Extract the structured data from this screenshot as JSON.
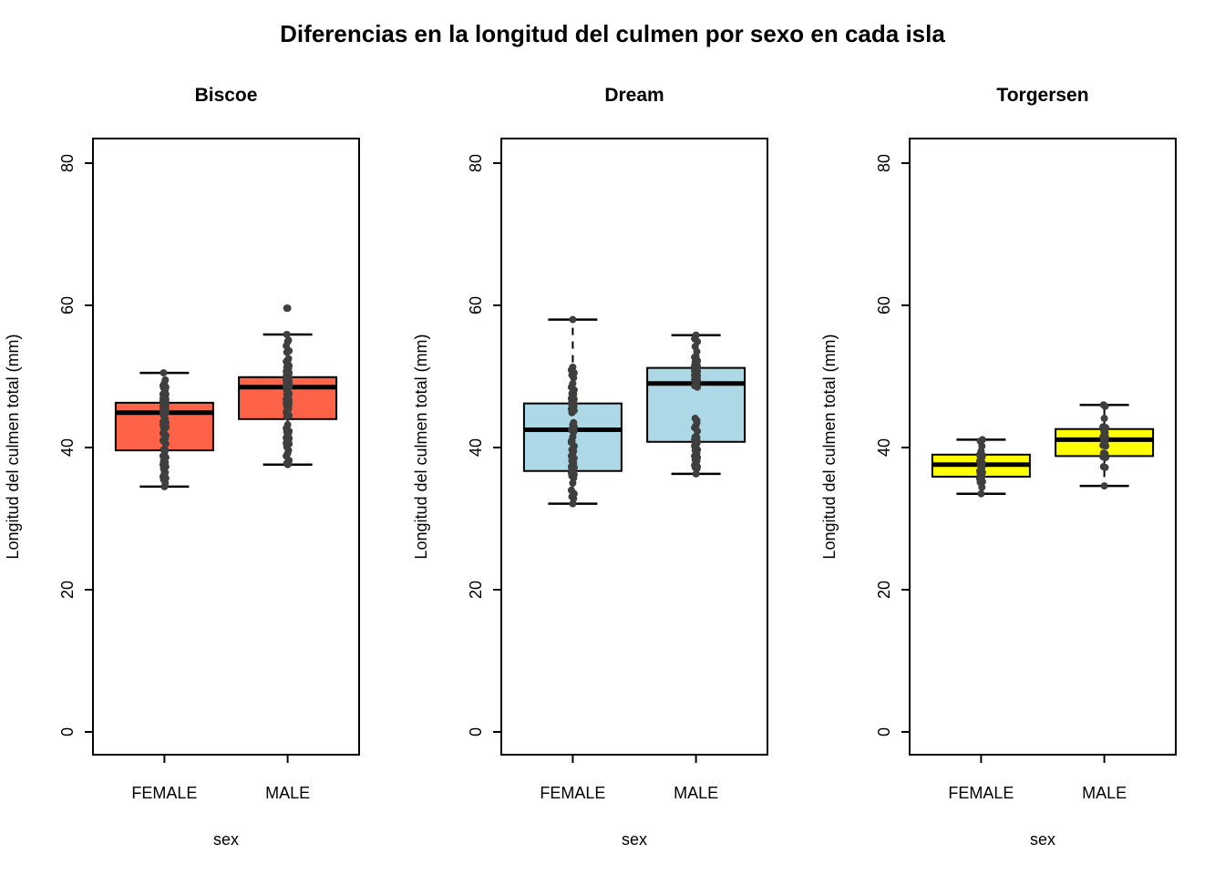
{
  "title": "Diferencias en la longitud del culmen por sexo en cada isla",
  "chart_data": {
    "type": "boxplot",
    "title": "Diferencias en la longitud del culmen por sexo en cada isla",
    "xlabel": "sex",
    "ylabel": "Longitud del culmen total (mm)",
    "categories": [
      "FEMALE",
      "MALE"
    ],
    "yticks": [
      0,
      20,
      40,
      60,
      80
    ],
    "ylim": [
      -3.2,
      83.5
    ],
    "grid": false,
    "point_color": "#3F3F3F",
    "panels": [
      {
        "title": "Biscoe",
        "fill": "#FF6347",
        "groups": [
          {
            "label": "FEMALE",
            "whisker_low": 34.5,
            "q1": 39.6,
            "median": 44.9,
            "q3": 46.3,
            "whisker_high": 50.5,
            "outliers": [],
            "points": [
              34.5,
              35.0,
              35.5,
              35.7,
              35.9,
              36.4,
              36.5,
              37.0,
              37.3,
              37.6,
              37.7,
              37.9,
              38.1,
              38.6,
              38.8,
              39.0,
              39.6,
              39.7,
              40.5,
              41.0,
              41.1,
              41.3,
              40.9,
              41.7,
              42.0,
              42.6,
              42.7,
              42.8,
              42.9,
              43.2,
              43.3,
              43.4,
              43.5,
              43.5,
              43.6,
              43.8,
              44.0,
              44.5,
              44.9,
              44.9,
              45.0,
              45.1,
              45.1,
              45.2,
              45.3,
              45.4,
              45.5,
              45.5,
              45.7,
              45.8,
              46.1,
              46.2,
              46.2,
              46.4,
              46.5,
              46.5,
              46.6,
              46.7,
              46.8,
              46.9,
              47.2,
              47.3,
              47.4,
              47.5,
              47.5,
              47.7,
              48.2,
              48.4,
              48.5,
              48.7,
              49.1,
              49.5,
              50.5,
              46.1,
              45.1,
              44.9,
              43.3,
              45.8,
              42.9,
              46.5
            ]
          },
          {
            "label": "MALE",
            "whisker_low": 37.6,
            "q1": 44.0,
            "median": 48.5,
            "q3": 49.9,
            "whisker_high": 55.9,
            "outliers": [
              59.6
            ],
            "points": [
              37.6,
              37.7,
              37.8,
              38.2,
              38.8,
              39.2,
              39.6,
              40.1,
              40.5,
              40.6,
              40.8,
              41.0,
              41.1,
              41.3,
              41.4,
              41.6,
              42.0,
              42.2,
              42.3,
              42.7,
              43.2,
              45.6,
              44.4,
              44.5,
              45.0,
              45.2,
              45.5,
              45.8,
              46.1,
              46.2,
              46.3,
              46.4,
              46.5,
              46.7,
              46.8,
              46.9,
              47.4,
              47.5,
              47.6,
              48.2,
              48.4,
              48.5,
              48.6,
              48.7,
              48.8,
              49.0,
              49.1,
              49.2,
              49.3,
              49.4,
              49.5,
              49.6,
              49.8,
              49.9,
              50.0,
              50.1,
              50.2,
              50.4,
              50.5,
              50.7,
              50.8,
              51.1,
              51.3,
              51.5,
              52.1,
              52.2,
              52.5,
              53.4,
              53.6,
              54.3,
              54.9,
              55.1,
              55.9,
              48.5,
              49.6,
              50.5,
              47.3,
              46.8,
              49.0,
              48.6,
              45.5,
              50.4,
              59.6
            ]
          }
        ]
      },
      {
        "title": "Dream",
        "fill": "#ADD8E6",
        "groups": [
          {
            "label": "FEMALE",
            "whisker_low": 32.1,
            "q1": 36.7,
            "median": 42.5,
            "q3": 46.2,
            "whisker_high": 58.0,
            "outliers": [],
            "points": [
              32.1,
              32.8,
              33.1,
              33.5,
              34.0,
              35.0,
              35.7,
              36.0,
              36.2,
              36.4,
              36.6,
              36.8,
              37.0,
              37.2,
              37.3,
              37.5,
              37.8,
              38.1,
              38.5,
              38.8,
              39.2,
              39.5,
              39.7,
              40.2,
              40.7,
              41.5,
              42.2,
              40.9,
              42.4,
              42.5,
              43.2,
              43.5,
              44.9,
              45.2,
              45.4,
              45.6,
              45.7,
              46.0,
              46.1,
              46.2,
              46.4,
              46.6,
              46.7,
              46.8,
              46.9,
              47.0,
              47.5,
              47.6,
              48.1,
              48.5,
              49.0,
              49.8,
              50.2,
              50.5,
              50.9,
              51.3,
              45.6,
              46.5,
              42.9,
              40.9,
              58.0
            ]
          },
          {
            "label": "MALE",
            "whisker_low": 36.3,
            "q1": 40.8,
            "median": 49.0,
            "q3": 51.2,
            "whisker_high": 55.8,
            "outliers": [],
            "points": [
              36.3,
              37.0,
              37.2,
              37.3,
              37.5,
              37.8,
              38.1,
              38.3,
              38.6,
              38.8,
              39.0,
              39.2,
              39.6,
              39.7,
              40.2,
              40.3,
              40.6,
              40.7,
              40.8,
              41.1,
              41.3,
              41.4,
              41.5,
              42.3,
              42.8,
              43.1,
              43.8,
              44.1,
              48.5,
              48.7,
              49.0,
              49.2,
              49.3,
              49.5,
              49.6,
              49.7,
              49.8,
              50.0,
              50.1,
              50.2,
              50.3,
              50.5,
              50.6,
              50.7,
              50.8,
              50.9,
              51.0,
              51.3,
              51.4,
              51.5,
              51.7,
              51.9,
              52.0,
              52.2,
              52.7,
              52.8,
              53.5,
              54.2,
              54.9,
              55.3,
              55.8,
              43.5
            ]
          }
        ]
      },
      {
        "title": "Torgersen",
        "fill": "#FFFF00",
        "groups": [
          {
            "label": "FEMALE",
            "whisker_low": 33.5,
            "q1": 35.9,
            "median": 37.6,
            "q3": 39.0,
            "whisker_high": 41.1,
            "outliers": [],
            "points": [
              33.5,
              34.4,
              35.1,
              35.2,
              35.6,
              35.7,
              35.9,
              36.2,
              36.5,
              36.7,
              37.0,
              37.2,
              37.6,
              37.8,
              38.1,
              38.5,
              38.6,
              38.8,
              38.9,
              39.0,
              39.5,
              40.2,
              40.9,
              41.1
            ]
          },
          {
            "label": "MALE",
            "whisker_low": 34.6,
            "q1": 38.8,
            "median": 41.1,
            "q3": 42.6,
            "whisker_high": 46.0,
            "outliers": [],
            "points": [
              34.6,
              37.2,
              37.3,
              38.6,
              38.7,
              38.8,
              39.1,
              39.2,
              40.2,
              40.3,
              40.6,
              40.9,
              41.1,
              41.4,
              41.5,
              42.0,
              42.1,
              42.5,
              42.8,
              42.9,
              44.1,
              45.8,
              46.0
            ]
          }
        ]
      }
    ]
  },
  "layout_colors": {
    "background": "#FFFFFF",
    "box_border": "#000000",
    "biscoe_fill": "#FF6347",
    "dream_fill": "#ADD8E6",
    "torgersen_fill": "#FFFF00",
    "points": "#3F3F3F"
  }
}
